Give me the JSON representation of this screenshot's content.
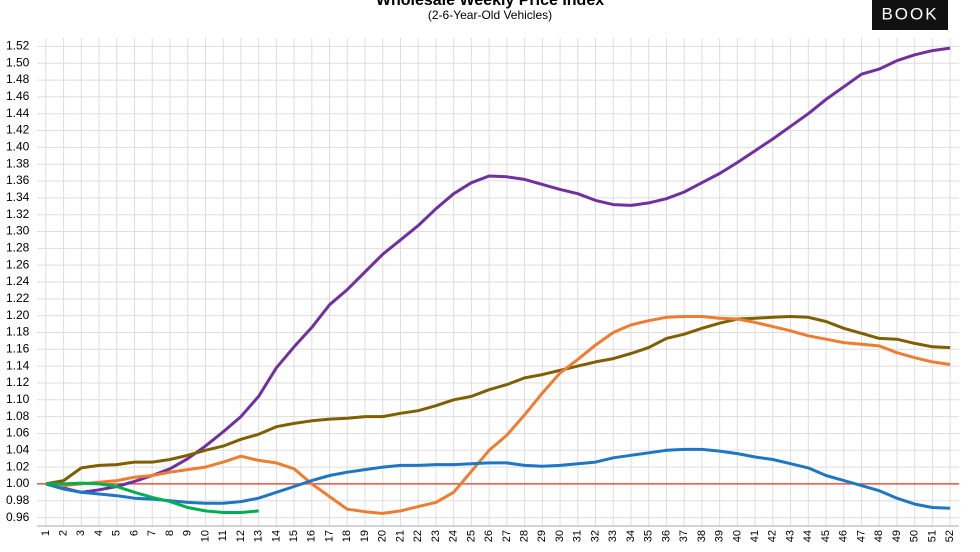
{
  "logo": "BOOK",
  "chart_data": {
    "type": "line",
    "title": "Wholesale Weekly Price Index",
    "subtitle": "(2-6-Year-Old Vehicles)",
    "categories": [
      1,
      2,
      3,
      4,
      5,
      6,
      7,
      8,
      9,
      10,
      11,
      12,
      13,
      14,
      15,
      16,
      17,
      18,
      19,
      20,
      21,
      22,
      23,
      24,
      25,
      26,
      27,
      28,
      29,
      30,
      31,
      32,
      33,
      34,
      35,
      36,
      37,
      38,
      39,
      40,
      41,
      42,
      43,
      44,
      45,
      46,
      47,
      48,
      49,
      50,
      51,
      52
    ],
    "ylim": [
      0.95,
      1.53
    ],
    "yticks": [
      0.96,
      0.98,
      {
        "value": 1,
        "label": "1.00"
      },
      1.02,
      1.04,
      1.06,
      1.08,
      {
        "value": 1.1,
        "label": "1.10"
      },
      1.12,
      1.14,
      1.16,
      1.18,
      {
        "value": 1.2,
        "label": "1.20"
      },
      1.22,
      1.24,
      1.26,
      1.28,
      {
        "value": 1.3,
        "label": "1.30"
      },
      1.32,
      1.34,
      1.36,
      1.38,
      {
        "value": 1.4,
        "label": "1.40"
      },
      1.42,
      1.44,
      1.46,
      1.48,
      {
        "value": 1.5,
        "label": "1.50"
      },
      1.52
    ],
    "grid": true,
    "reference_line": {
      "value": 1,
      "color": "#e8553f"
    },
    "series": [
      {
        "color": "#7030a0",
        "values": [
          1.0,
          0.995,
          0.99,
          0.993,
          0.997,
          1.003,
          1.01,
          1.018,
          1.03,
          1.045,
          1.062,
          1.08,
          1.104,
          1.138,
          1.163,
          1.186,
          1.213,
          1.231,
          1.252,
          1.273,
          1.29,
          1.307,
          1.327,
          1.345,
          1.358,
          1.366,
          1.365,
          1.362,
          1.356,
          1.35,
          1.345,
          1.337,
          1.332,
          1.331,
          1.334,
          1.339,
          1.347,
          1.358,
          1.369,
          1.382,
          1.396,
          1.41,
          1.425,
          1.44,
          1.457,
          1.472,
          1.487,
          1.493,
          1.503,
          1.51,
          1.515,
          1.518
        ]
      },
      {
        "color": "#7f6000",
        "values": [
          1.0,
          1.004,
          1.019,
          1.022,
          1.023,
          1.026,
          1.026,
          1.029,
          1.034,
          1.04,
          1.045,
          1.053,
          1.059,
          1.068,
          1.072,
          1.075,
          1.077,
          1.078,
          1.08,
          1.08,
          1.084,
          1.087,
          1.093,
          1.1,
          1.104,
          1.112,
          1.118,
          1.126,
          1.13,
          1.135,
          1.14,
          1.145,
          1.149,
          1.155,
          1.162,
          1.173,
          1.178,
          1.185,
          1.191,
          1.196,
          1.197,
          1.198,
          1.199,
          1.198,
          1.193,
          1.185,
          1.179,
          1.173,
          1.172,
          1.167,
          1.163,
          1.162
        ]
      },
      {
        "color": "#ed7d31",
        "values": [
          1.0,
          0.998,
          1.0,
          1.002,
          1.004,
          1.008,
          1.01,
          1.014,
          1.017,
          1.02,
          1.026,
          1.033,
          1.028,
          1.025,
          1.018,
          1.0,
          0.985,
          0.97,
          0.967,
          0.965,
          0.968,
          0.973,
          0.978,
          0.99,
          1.015,
          1.04,
          1.058,
          1.082,
          1.108,
          1.132,
          1.148,
          1.165,
          1.18,
          1.189,
          1.194,
          1.198,
          1.199,
          1.199,
          1.197,
          1.196,
          1.192,
          1.187,
          1.182,
          1.176,
          1.172,
          1.168,
          1.166,
          1.164,
          1.156,
          1.15,
          1.145,
          1.142
        ]
      },
      {
        "color": "#1f77c4",
        "values": [
          1.0,
          0.994,
          0.99,
          0.988,
          0.986,
          0.983,
          0.982,
          0.98,
          0.978,
          0.977,
          0.977,
          0.979,
          0.983,
          0.99,
          0.997,
          1.004,
          1.01,
          1.014,
          1.017,
          1.02,
          1.022,
          1.022,
          1.023,
          1.023,
          1.024,
          1.025,
          1.025,
          1.022,
          1.021,
          1.022,
          1.024,
          1.026,
          1.031,
          1.034,
          1.037,
          1.04,
          1.041,
          1.041,
          1.039,
          1.036,
          1.032,
          1.029,
          1.024,
          1.019,
          1.01,
          1.004,
          0.998,
          0.992,
          0.983,
          0.976,
          0.972,
          0.971
        ]
      },
      {
        "color": "#00b050",
        "values": [
          1.0,
          1.0,
          1.001,
          1.0,
          0.997,
          0.99,
          0.984,
          0.979,
          0.972,
          0.968,
          0.966,
          0.966,
          0.968,
          null,
          null,
          null,
          null,
          null,
          null,
          null,
          null,
          null,
          null,
          null,
          null,
          null,
          null,
          null,
          null,
          null,
          null,
          null,
          null,
          null,
          null,
          null,
          null,
          null,
          null,
          null,
          null,
          null,
          null,
          null,
          null,
          null,
          null,
          null,
          null,
          null,
          null,
          null
        ]
      }
    ]
  }
}
